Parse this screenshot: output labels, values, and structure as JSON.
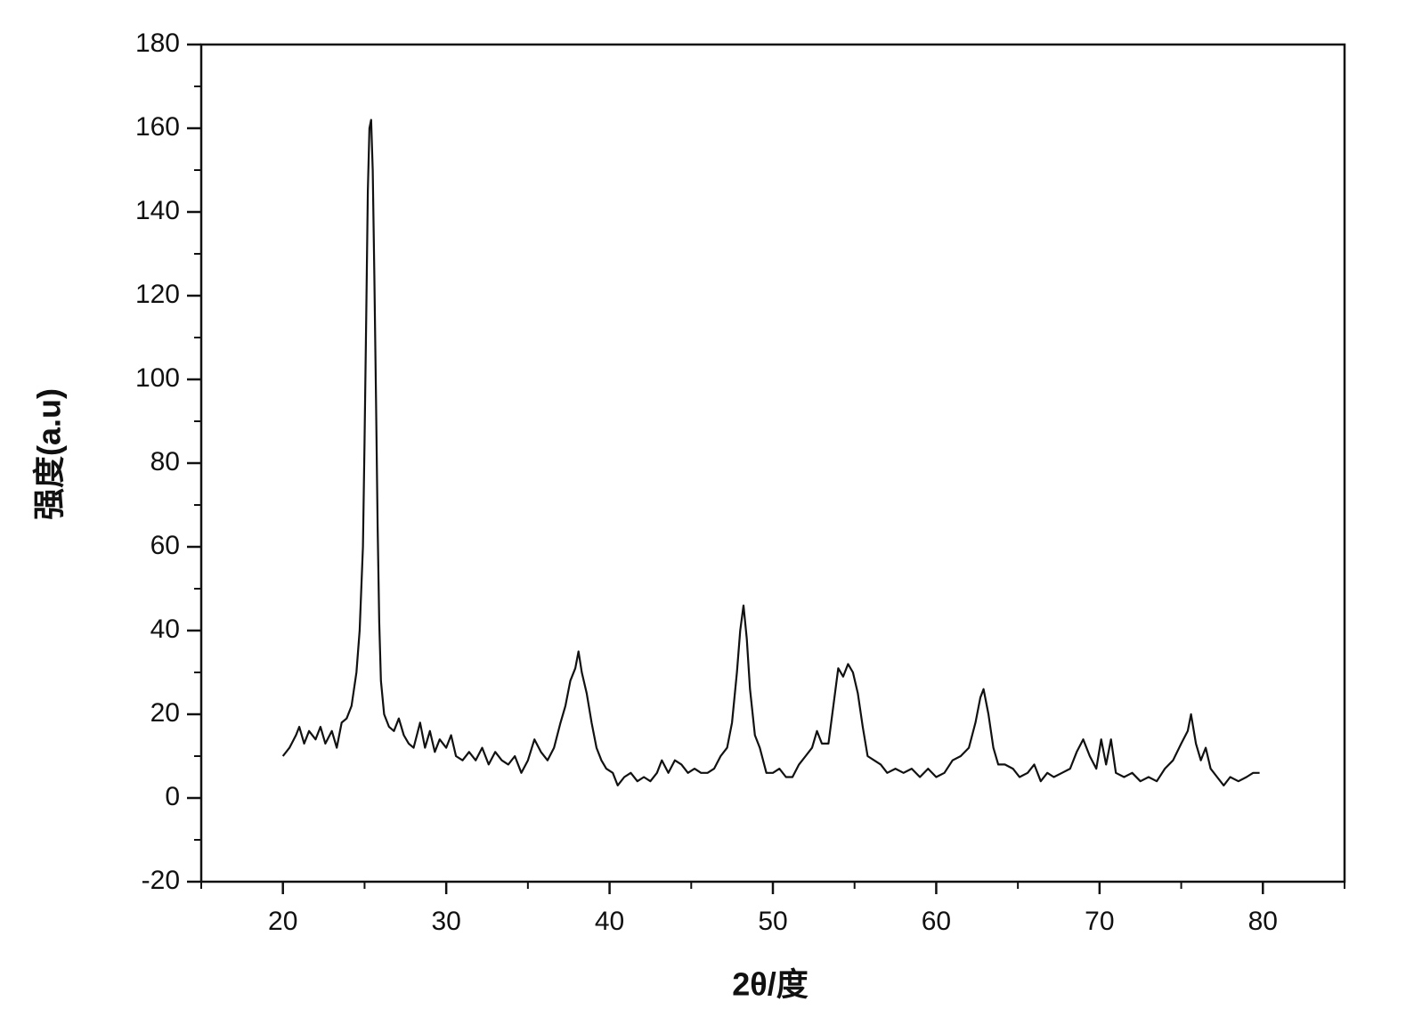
{
  "chart_data": {
    "type": "line",
    "xlabel": "2θ/度",
    "ylabel": "强度(a.u)",
    "color": "#111111",
    "xlim": [
      15,
      85
    ],
    "xticks": [
      20,
      30,
      40,
      50,
      60,
      70,
      80
    ],
    "xticks_minor": [
      15,
      25,
      35,
      45,
      55,
      65,
      75,
      85
    ],
    "ylim": [
      -20,
      180
    ],
    "yticks": [
      -20,
      0,
      20,
      40,
      60,
      80,
      100,
      120,
      140,
      160,
      180
    ],
    "yticks_minor": [
      -10,
      10,
      30,
      50,
      70,
      90,
      110,
      130,
      150,
      170
    ],
    "x": [
      20.0,
      20.4,
      20.8,
      21.0,
      21.3,
      21.6,
      22.0,
      22.3,
      22.6,
      23.0,
      23.3,
      23.6,
      23.9,
      24.2,
      24.5,
      24.7,
      24.9,
      25.0,
      25.1,
      25.2,
      25.3,
      25.4,
      25.5,
      25.6,
      25.7,
      25.8,
      25.9,
      26.0,
      26.2,
      26.5,
      26.8,
      27.1,
      27.4,
      27.7,
      28.0,
      28.4,
      28.7,
      29.0,
      29.3,
      29.6,
      30.0,
      30.3,
      30.6,
      31.0,
      31.4,
      31.8,
      32.2,
      32.6,
      33.0,
      33.4,
      33.8,
      34.2,
      34.6,
      35.0,
      35.4,
      35.8,
      36.2,
      36.6,
      37.0,
      37.3,
      37.6,
      37.9,
      38.1,
      38.3,
      38.6,
      38.9,
      39.2,
      39.5,
      39.8,
      40.2,
      40.5,
      40.9,
      41.3,
      41.7,
      42.1,
      42.5,
      42.9,
      43.2,
      43.6,
      44.0,
      44.4,
      44.8,
      45.2,
      45.6,
      46.0,
      46.4,
      46.8,
      47.2,
      47.5,
      47.8,
      48.0,
      48.2,
      48.4,
      48.6,
      48.9,
      49.2,
      49.6,
      50.0,
      50.4,
      50.8,
      51.2,
      51.6,
      52.0,
      52.4,
      52.7,
      53.0,
      53.4,
      53.7,
      54.0,
      54.3,
      54.6,
      54.9,
      55.2,
      55.5,
      55.8,
      56.2,
      56.6,
      57.0,
      57.5,
      58.0,
      58.5,
      59.0,
      59.5,
      60.0,
      60.5,
      61.0,
      61.5,
      62.0,
      62.4,
      62.7,
      62.9,
      63.2,
      63.5,
      63.8,
      64.2,
      64.7,
      65.1,
      65.6,
      66.0,
      66.4,
      66.8,
      67.2,
      67.7,
      68.2,
      68.6,
      69.0,
      69.4,
      69.8,
      70.1,
      70.4,
      70.7,
      71.0,
      71.5,
      72.0,
      72.5,
      73.0,
      73.5,
      74.0,
      74.5,
      75.0,
      75.4,
      75.6,
      75.9,
      76.2,
      76.5,
      76.8,
      77.2,
      77.6,
      78.0,
      78.5,
      79.0,
      79.4,
      79.8
    ],
    "values": [
      10,
      12,
      15,
      17,
      13,
      16,
      14,
      17,
      13,
      16,
      12,
      18,
      19,
      22,
      30,
      40,
      60,
      85,
      115,
      145,
      160,
      162,
      150,
      125,
      95,
      65,
      42,
      28,
      20,
      17,
      16,
      19,
      15,
      13,
      12,
      18,
      12,
      16,
      11,
      14,
      12,
      15,
      10,
      9,
      11,
      9,
      12,
      8,
      11,
      9,
      8,
      10,
      6,
      9,
      14,
      11,
      9,
      12,
      18,
      22,
      28,
      31,
      35,
      30,
      25,
      18,
      12,
      9,
      7,
      6,
      3,
      5,
      6,
      4,
      5,
      4,
      6,
      9,
      6,
      9,
      8,
      6,
      7,
      6,
      6,
      7,
      10,
      12,
      18,
      30,
      40,
      46,
      38,
      26,
      15,
      12,
      6,
      6,
      7,
      5,
      5,
      8,
      10,
      12,
      16,
      13,
      13,
      22,
      31,
      29,
      32,
      30,
      25,
      17,
      10,
      9,
      8,
      6,
      7,
      6,
      7,
      5,
      7,
      5,
      6,
      9,
      10,
      12,
      18,
      24,
      26,
      20,
      12,
      8,
      8,
      7,
      5,
      6,
      8,
      4,
      6,
      5,
      6,
      7,
      11,
      14,
      10,
      7,
      14,
      8,
      14,
      6,
      5,
      6,
      4,
      5,
      4,
      7,
      9,
      13,
      16,
      20,
      13,
      9,
      12,
      7,
      5,
      3,
      5,
      4,
      5,
      6,
      6
    ]
  }
}
